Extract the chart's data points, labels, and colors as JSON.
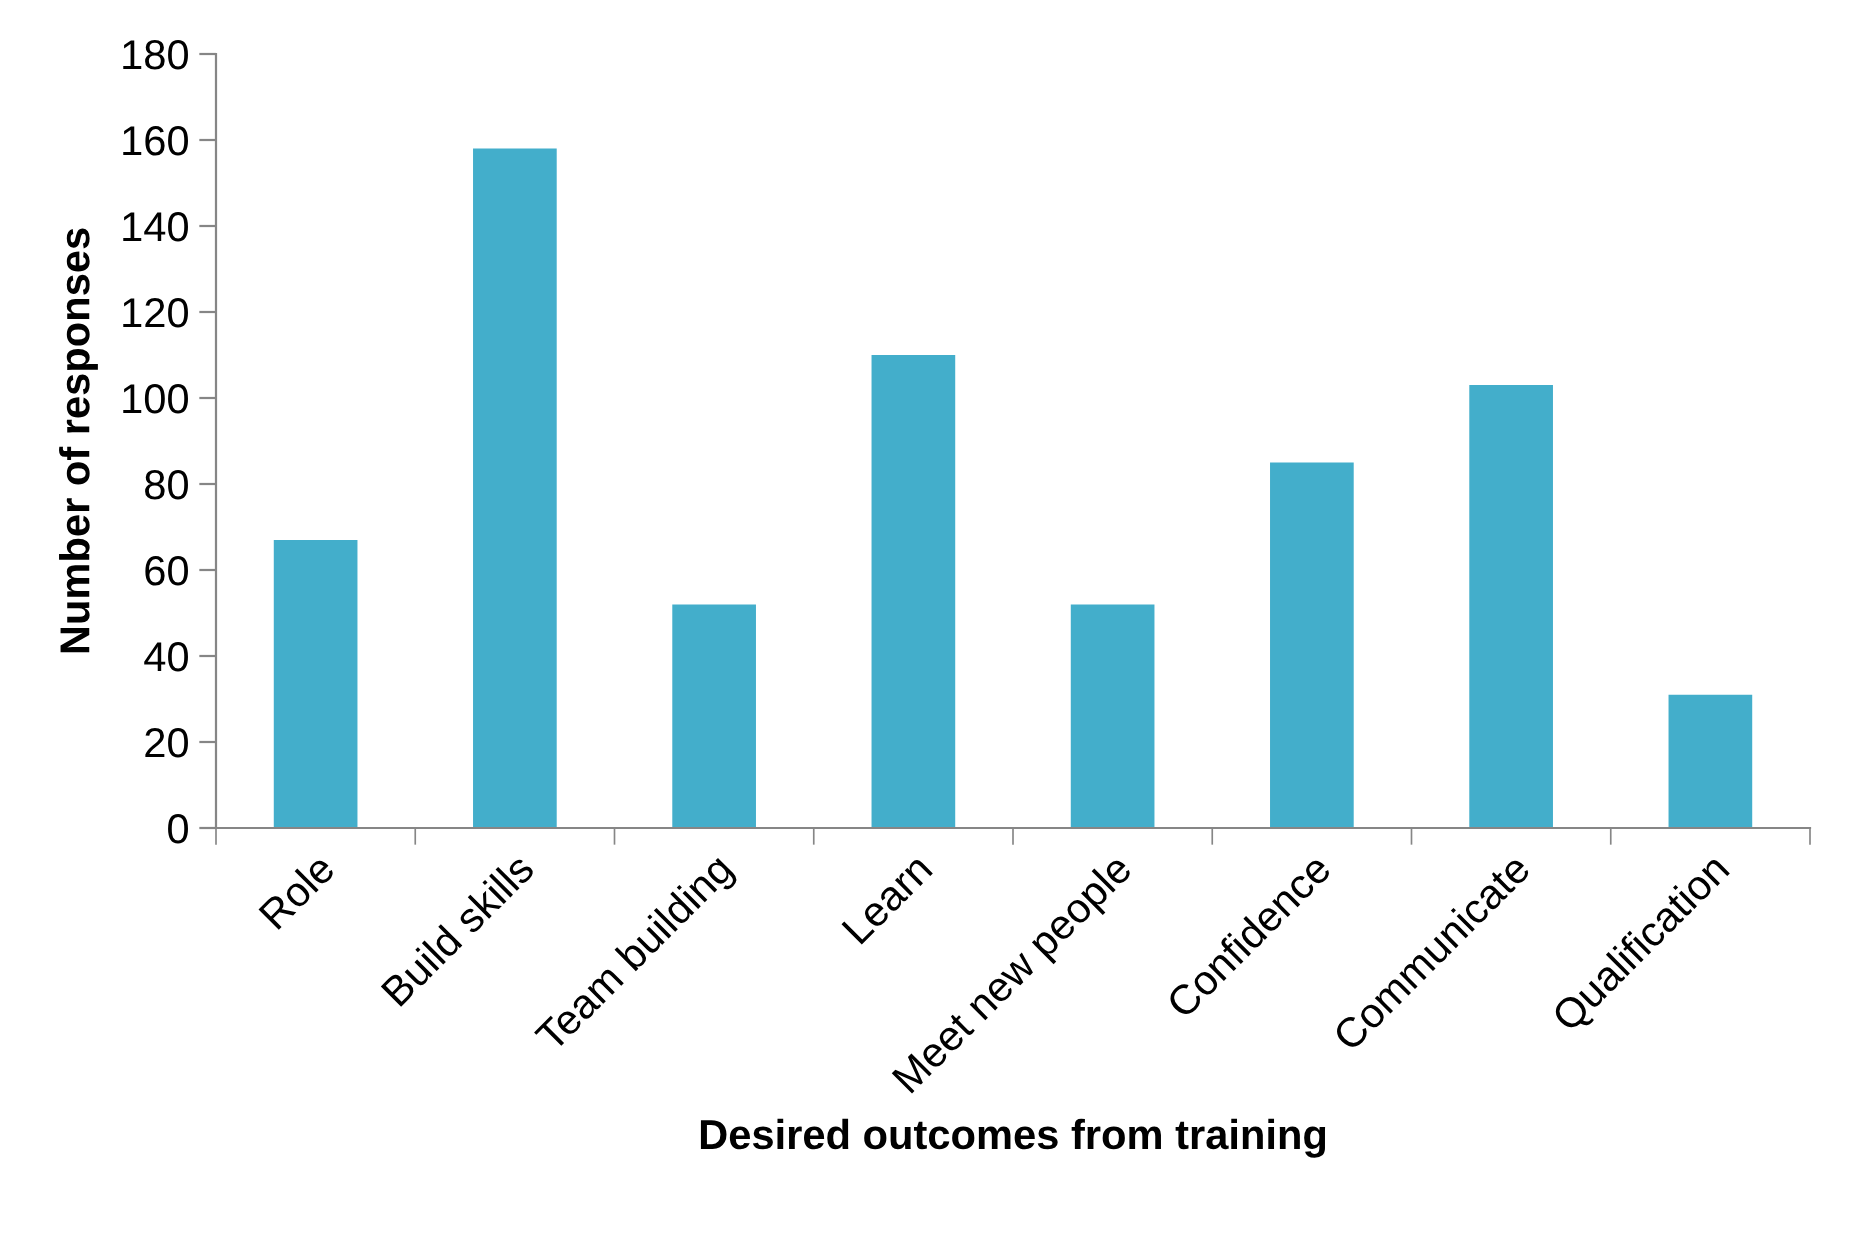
{
  "chart_data": {
    "type": "bar",
    "xlabel": "Desired outcomes from training",
    "ylabel": "Number of responses",
    "categories": [
      "Role",
      "Build skills",
      "Team building",
      "Learn",
      "Meet new people",
      "Confidence",
      "Communicate",
      "Qualification"
    ],
    "values": [
      67,
      158,
      52,
      110,
      52,
      85,
      103,
      31
    ],
    "color": "#43aecb",
    "ylim": [
      0,
      180
    ],
    "yticks": [
      0,
      20,
      40,
      60,
      80,
      100,
      120,
      140,
      160,
      180
    ],
    "grid": false,
    "legend": false
  }
}
